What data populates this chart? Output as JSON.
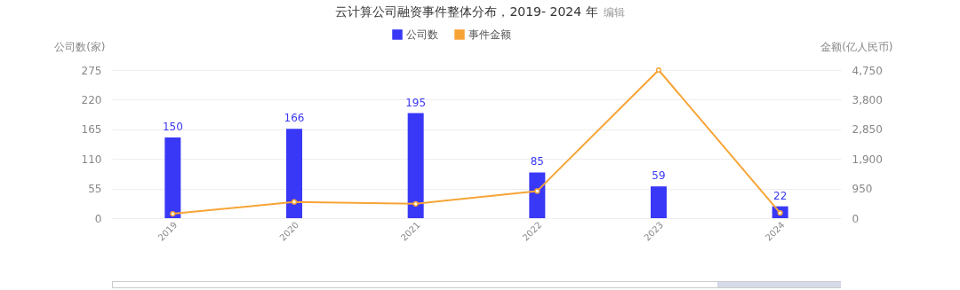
{
  "chart_data": {
    "type": "bar",
    "title": "云计算公司融资事件整体分布，2019- 2024 年",
    "annotations": [
      "编辑"
    ],
    "categories": [
      "2019",
      "2020",
      "2021",
      "2022",
      "2023",
      "2024"
    ],
    "series": [
      {
        "name": "公司数",
        "color": "#3a38f7",
        "values": [
          150,
          166,
          195,
          85,
          59,
          22
        ],
        "value_labels": [
          "150",
          "166",
          "195",
          "85",
          "59",
          "22"
        ]
      },
      {
        "name": "事件金额",
        "type": "line",
        "axis": "y2",
        "color": "#f7a436",
        "values": [
          140,
          520,
          460,
          870,
          4750,
          170
        ]
      }
    ],
    "ylabel": "公司数(家)",
    "y2label": "金额(亿人民币)",
    "ylim": [
      0,
      275
    ],
    "yticks": [
      0,
      55,
      110,
      165,
      220,
      275
    ],
    "y2lim": [
      0,
      4750
    ],
    "y2ticks": [
      0,
      {
        "value": 950,
        "label": "950"
      },
      {
        "value": 1900,
        "label": "1,900"
      },
      {
        "value": 2850,
        "label": "2,850"
      },
      {
        "value": 3800,
        "label": "3,800"
      },
      {
        "value": 4750,
        "label": "4,750"
      }
    ],
    "grid": "y",
    "legend": "top",
    "marker": "circle",
    "line_style": "solid"
  }
}
